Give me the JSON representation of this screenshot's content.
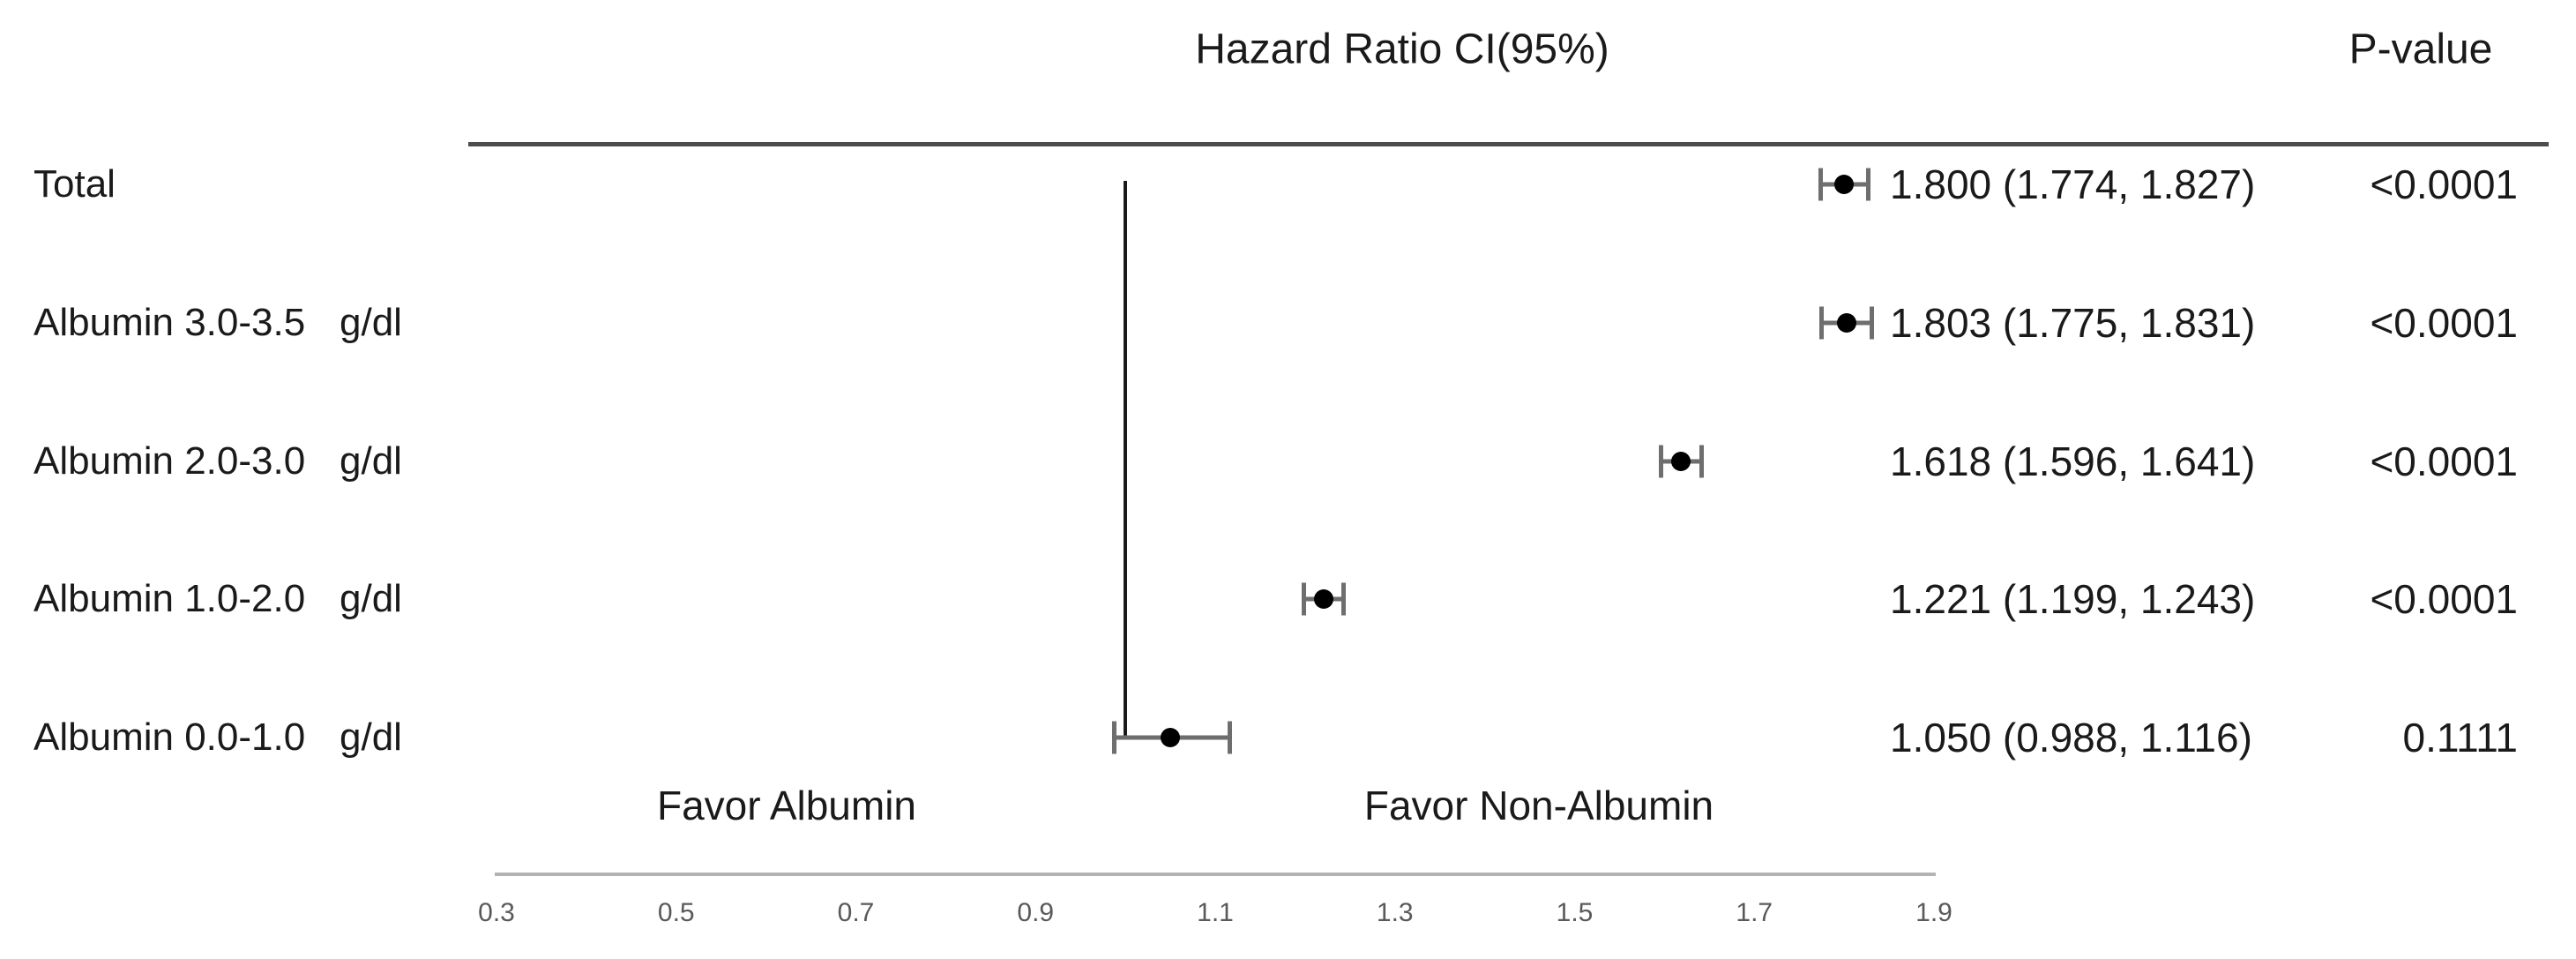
{
  "header": {
    "title": "Hazard Ratio CI(95%)",
    "pvalue_label": "P-value"
  },
  "chart_data": {
    "type": "forest",
    "title": "Hazard Ratio CI(95%)",
    "axis": {
      "min": 0.3,
      "max": 1.9,
      "ticks": [
        0.3,
        0.5,
        0.7,
        0.9,
        1.1,
        1.3,
        1.5,
        1.7,
        1.9
      ],
      "reference_line": 1.0
    },
    "favor_left_label": "Favor Albumin",
    "favor_right_label": "Favor Non-Albumin",
    "rows": [
      {
        "label": "Total",
        "unit": "",
        "hr": 1.8,
        "ci_low": 1.774,
        "ci_high": 1.827,
        "estimate_text": "1.800 (1.774, 1.827)",
        "p_value": "<0.0001"
      },
      {
        "label": "Albumin 3.0-3.5",
        "unit": "g/dl",
        "hr": 1.803,
        "ci_low": 1.775,
        "ci_high": 1.831,
        "estimate_text": "1.803 (1.775, 1.831)",
        "p_value": "<0.0001"
      },
      {
        "label": "Albumin 2.0-3.0",
        "unit": "g/dl",
        "hr": 1.618,
        "ci_low": 1.596,
        "ci_high": 1.641,
        "estimate_text": "1.618 (1.596, 1.641)",
        "p_value": "<0.0001"
      },
      {
        "label": "Albumin 1.0-2.0",
        "unit": "g/dl",
        "hr": 1.221,
        "ci_low": 1.199,
        "ci_high": 1.243,
        "estimate_text": "1.221 (1.199, 1.243)",
        "p_value": "<0.0001"
      },
      {
        "label": "Albumin 0.0-1.0",
        "unit": "g/dl",
        "hr": 1.05,
        "ci_low": 0.988,
        "ci_high": 1.116,
        "estimate_text": "1.050 (0.988, 1.116)",
        "p_value": "0.1111"
      }
    ],
    "colors": {
      "text": "#1a1a1a",
      "marker": "#000000",
      "whisker": "#6e6e6e",
      "axis_line": "#b3b3b3",
      "reference_line": "#1a1a1a",
      "header_rule": "#4d4d4d",
      "tick_label": "#595959"
    },
    "legend_position": "none",
    "grid": false
  }
}
